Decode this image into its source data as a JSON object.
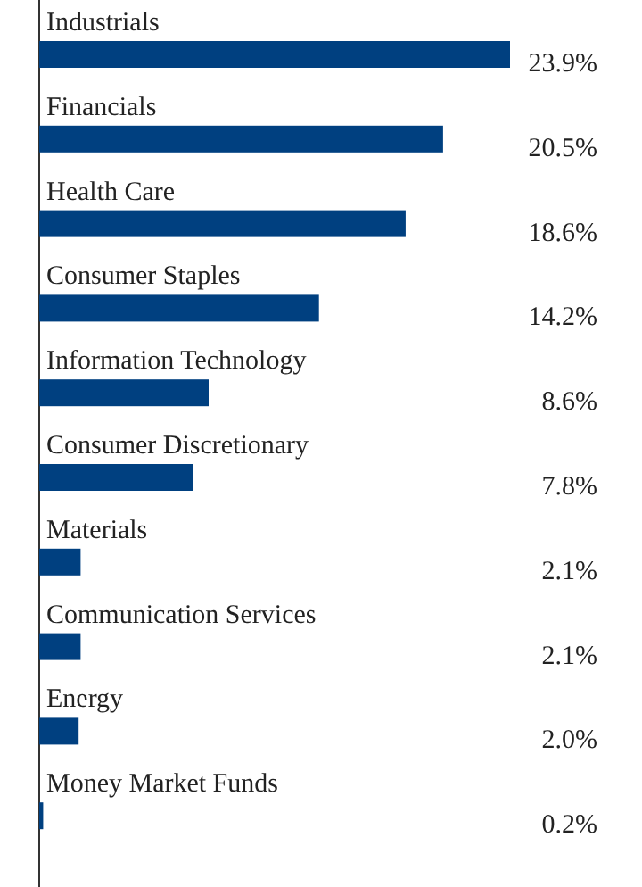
{
  "chart_data": {
    "type": "bar",
    "orientation": "horizontal",
    "categories": [
      "Industrials",
      "Financials",
      "Health Care",
      "Consumer Staples",
      "Information Technology",
      "Consumer Discretionary",
      "Materials",
      "Communication Services",
      "Energy",
      "Money Market Funds"
    ],
    "values": [
      23.9,
      20.5,
      18.6,
      14.2,
      8.6,
      7.8,
      2.1,
      2.1,
      2.0,
      0.2
    ],
    "color": "#004080",
    "value_labels": [
      "23.9%",
      "20.5%",
      "18.6%",
      "14.2%",
      "8.6%",
      "7.8%",
      "2.1%",
      "2.1%",
      "2.0%",
      "0.2%"
    ]
  }
}
